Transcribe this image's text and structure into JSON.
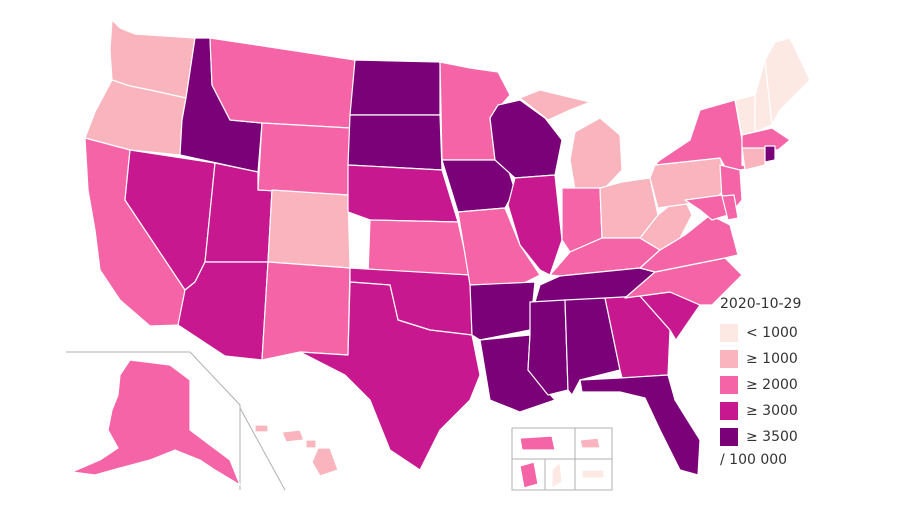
{
  "legend": {
    "title": "2020-10-29",
    "unit": "/ 100 000",
    "items": [
      {
        "label": "< 1000",
        "color": "#fde9e4"
      },
      {
        "label": "≥ 1000",
        "color": "#f9b4bd"
      },
      {
        "label": "≥ 2000",
        "color": "#f464a6"
      },
      {
        "label": "≥ 3000",
        "color": "#c7188f"
      },
      {
        "label": "≥ 3500",
        "color": "#7a0177"
      }
    ]
  },
  "states": {
    "WA": 1,
    "OR": 1,
    "CA": 2,
    "ID": 4,
    "NV": 3,
    "UT": 3,
    "AZ": 3,
    "MT": 2,
    "WY": 2,
    "CO": 1,
    "NM": 2,
    "ND": 4,
    "SD": 4,
    "NE": 3,
    "KS": 2,
    "OK": 3,
    "TX": 3,
    "MN": 2,
    "IA": 4,
    "MO": 2,
    "AR": 4,
    "LA": 4,
    "WI": 4,
    "IL": 3,
    "MI": 1,
    "IN": 2,
    "OH": 1,
    "KY": 2,
    "TN": 4,
    "MS": 4,
    "AL": 4,
    "GA": 3,
    "FL": 4,
    "SC": 3,
    "NC": 2,
    "VA": 2,
    "WV": 1,
    "PA": 1,
    "NY": 2,
    "VT": 0,
    "NH": 0,
    "ME": 0,
    "MA": 2,
    "RI": 4,
    "CT": 1,
    "NJ": 2,
    "DE": 2,
    "MD": 2,
    "AK": 2,
    "HI": 1,
    "PR": 2,
    "GU": 2,
    "VI": 1,
    "MP": 0,
    "AS": 0
  }
}
